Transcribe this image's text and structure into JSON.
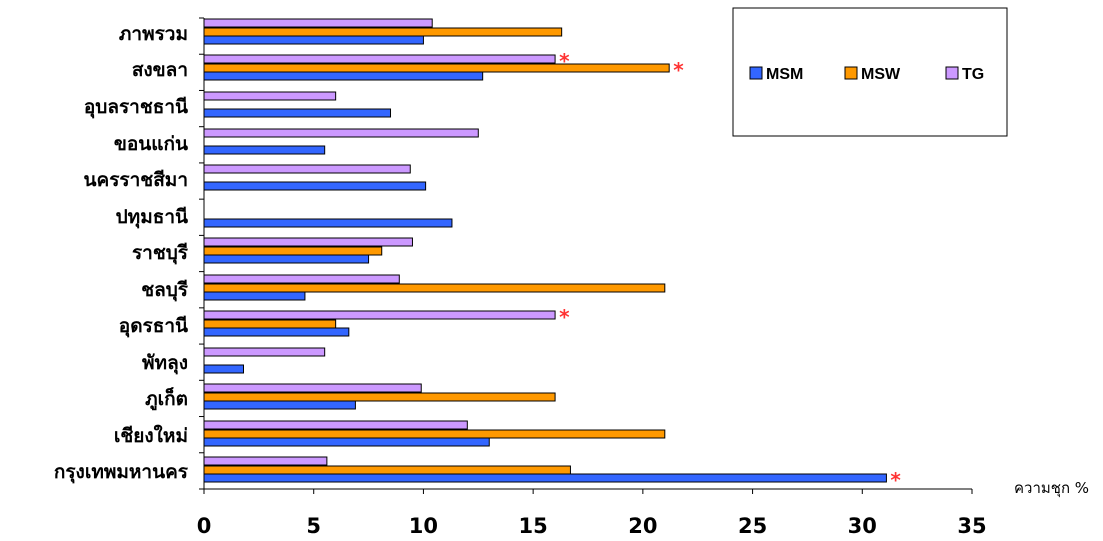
{
  "chart_data": {
    "type": "bar",
    "orientation": "horizontal",
    "categories": [
      "กรุงเทพมหานคร",
      "เชียงใหม่",
      "ภูเก็ต",
      "พัทลุง",
      "อุดรธานี",
      "ชลบุรี",
      "ราชบุรี",
      "ปทุมธานี",
      "นครราชสีมา",
      "ขอนแก่น",
      "อุบลราชธานี",
      "สงขลา",
      "ภาพรวม"
    ],
    "series": [
      {
        "name": "MSM",
        "color": "#3366ff",
        "values": [
          31.1,
          13.0,
          6.9,
          1.8,
          6.6,
          4.6,
          7.5,
          11.3,
          10.1,
          5.5,
          8.5,
          12.7,
          10.0
        ]
      },
      {
        "name": "MSW",
        "color": "#ff9900",
        "values": [
          16.7,
          21.0,
          16.0,
          null,
          6.0,
          21.0,
          8.1,
          null,
          null,
          null,
          null,
          21.2,
          16.3
        ]
      },
      {
        "name": "TG",
        "color": "#cc99ff",
        "values": [
          5.6,
          12.0,
          9.9,
          5.5,
          16.0,
          8.9,
          9.5,
          null,
          9.4,
          12.5,
          6.0,
          16.0,
          10.4
        ]
      }
    ],
    "markers": [
      {
        "category": "กรุงเทพมหานคร",
        "series": "MSM",
        "symbol": "*"
      },
      {
        "category": "อุดรธานี",
        "series": "TG",
        "symbol": "*"
      },
      {
        "category": "สงขลา",
        "series": "TG",
        "symbol": "*"
      },
      {
        "category": "สงขลา",
        "series": "MSW",
        "symbol": "*"
      }
    ],
    "marker_color": "#ff3333",
    "xlim": [
      0,
      35
    ],
    "xticks": [
      "0",
      "5",
      "10",
      "15",
      "20",
      "25",
      "30",
      "35"
    ],
    "xlabel": "ความชุก %",
    "legend": {
      "position": "top-right",
      "entries": [
        "MSM",
        "MSW",
        "TG"
      ]
    },
    "grid": false
  }
}
